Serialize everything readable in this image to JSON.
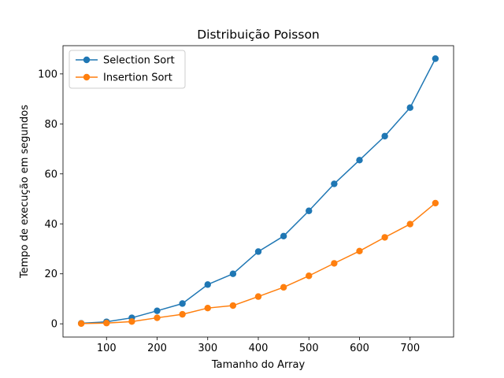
{
  "chart_data": {
    "type": "line",
    "title": "Distribuição Poisson",
    "xlabel": "Tamanho do Array",
    "ylabel": "Tempo de execução em segundos",
    "xlim": [
      14,
      786
    ],
    "ylim": [
      -5.3,
      111.3
    ],
    "xticks": [
      100,
      200,
      300,
      400,
      500,
      600,
      700
    ],
    "yticks": [
      0,
      20,
      40,
      60,
      80,
      100
    ],
    "grid": false,
    "legend_position": "top-left",
    "x": [
      50,
      100,
      150,
      200,
      250,
      300,
      350,
      400,
      450,
      500,
      550,
      600,
      650,
      700,
      750
    ],
    "series": [
      {
        "name": "Selection Sort",
        "color": "#1f77b4",
        "values": [
          0.2,
          0.8,
          2.4,
          5.2,
          8.1,
          15.7,
          20.0,
          28.9,
          35.1,
          45.2,
          56.0,
          65.5,
          75.1,
          86.5,
          106.1
        ]
      },
      {
        "name": "Insertion Sort",
        "color": "#ff7f0e",
        "values": [
          0.1,
          0.3,
          0.9,
          2.4,
          3.8,
          6.3,
          7.3,
          10.9,
          14.6,
          19.2,
          24.2,
          29.1,
          34.6,
          39.9,
          48.3
        ]
      }
    ]
  }
}
